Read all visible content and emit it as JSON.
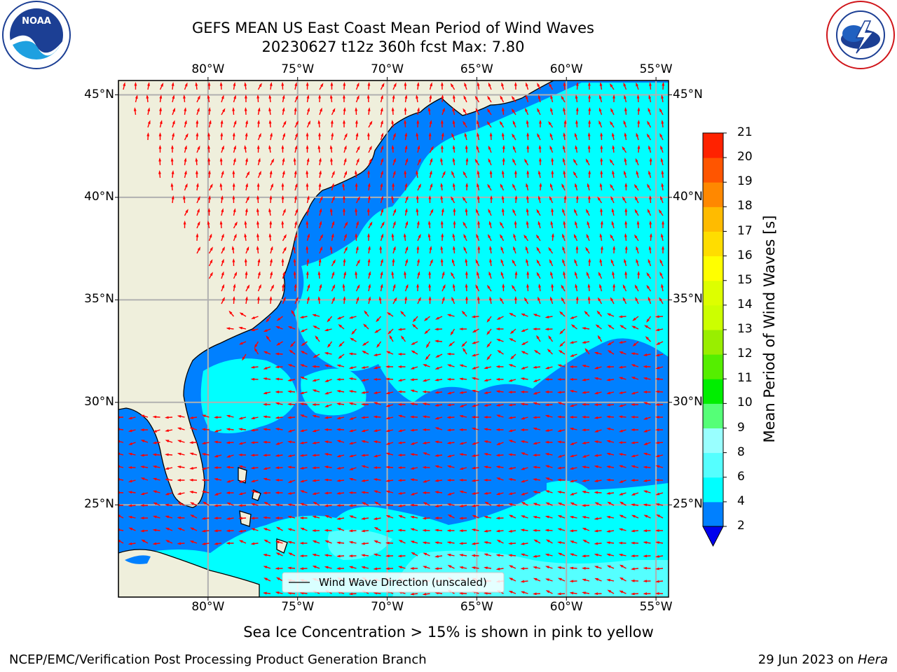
{
  "header": {
    "title_line1": "GEFS MEAN US East Coast Mean Period of Wind Waves",
    "title_line2": "20230627 t12z 360h fcst   Max: 7.80"
  },
  "logos": {
    "left": {
      "name": "noaa-logo",
      "text": "NOAA"
    },
    "right": {
      "name": "nws-logo"
    }
  },
  "map": {
    "lon_ticks": [
      "80°W",
      "75°W",
      "70°W",
      "65°W",
      "60°W",
      "55°W"
    ],
    "lat_ticks": [
      "45°N",
      "40°N",
      "35°N",
      "30°N",
      "25°N"
    ],
    "lon_values": [
      -80,
      -75,
      -70,
      -65,
      -60,
      -55
    ],
    "lat_values": [
      45,
      40,
      35,
      30,
      25
    ],
    "lon_range": [
      -85,
      -54.3
    ],
    "lat_range": [
      20.5,
      45.7
    ],
    "colors": {
      "land": "#efefdc",
      "ocean_low": "#0080ff",
      "ocean_mid": "#00ffff",
      "ocean_high": "#55ffff",
      "arrow": "#ff0000",
      "grid": "#b0b0b0"
    },
    "legend_label": "Wind Wave Direction (unscaled)"
  },
  "colorbar": {
    "label": "Mean Period of Wind Waves [s]",
    "ticks": [
      "2",
      "4",
      "6",
      "8",
      "9",
      "10",
      "11",
      "12",
      "13",
      "14",
      "15",
      "16",
      "17",
      "18",
      "19",
      "20",
      "21"
    ],
    "colors": [
      "#0080ff",
      "#00ffff",
      "#55ffff",
      "#99ffff",
      "#55ff77",
      "#00ee00",
      "#55ee00",
      "#99ee00",
      "#ccff00",
      "#ddff00",
      "#ffff00",
      "#ffdd00",
      "#ffbb00",
      "#ff8800",
      "#ff5500",
      "#ff2200"
    ],
    "extend_color": "#0000ee"
  },
  "footer": {
    "note": "Sea Ice Concentration > 15% is shown in pink to yellow",
    "left": "NCEP/EMC/Verification Post Processing Product Generation Branch",
    "right_date": "29 Jun 2023 on ",
    "right_machine": "Hera"
  }
}
